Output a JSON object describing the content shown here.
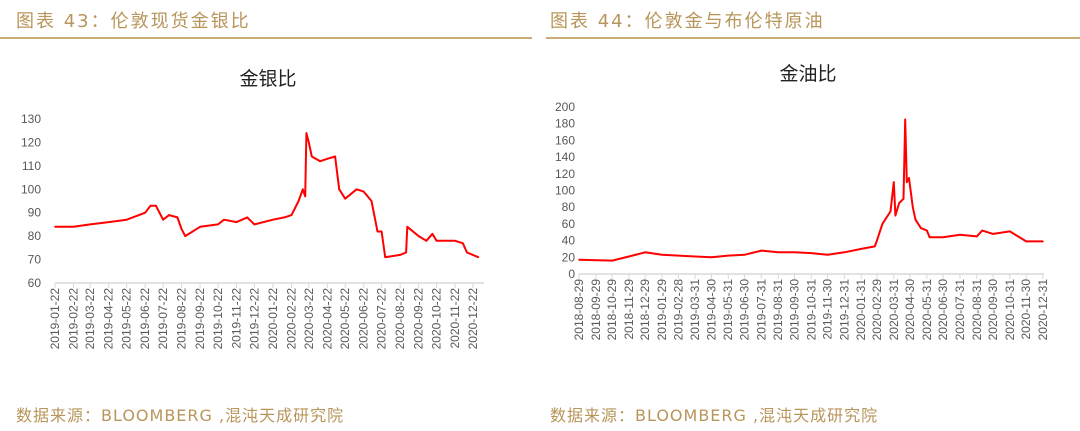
{
  "left_panel": {
    "header": "图表 43：伦敦现货金银比",
    "source": "数据来源：BLOOMBERG ,混沌天成研究院"
  },
  "right_panel": {
    "header": "图表 44：伦敦金与布伦特原油",
    "source": "数据来源：BLOOMBERG ,混沌天成研究院"
  },
  "chart_data": [
    {
      "type": "line",
      "title": "金银比",
      "line_color": "#ff0000",
      "ylim": [
        60,
        130
      ],
      "yticks": [
        60,
        70,
        80,
        90,
        100,
        110,
        120,
        130
      ],
      "xticks": [
        "2019-01-22",
        "2019-02-22",
        "2019-03-22",
        "2019-04-22",
        "2019-05-22",
        "2019-06-22",
        "2019-07-22",
        "2019-08-22",
        "2019-09-22",
        "2019-10-22",
        "2019-11-22",
        "2019-12-22",
        "2020-01-22",
        "2020-02-22",
        "2020-03-22",
        "2020-04-22",
        "2020-05-22",
        "2020-06-22",
        "2020-07-22",
        "2020-08-22",
        "2020-09-22",
        "2020-10-22",
        "2020-11-22",
        "2020-12-22"
      ],
      "grid": false,
      "series": [
        {
          "x": [
            "2019-01-22",
            "2019-02-22",
            "2019-03-22",
            "2019-04-22",
            "2019-05-22",
            "2019-06-22",
            "2019-07-01",
            "2019-07-10",
            "2019-07-22",
            "2019-08-01",
            "2019-08-15",
            "2019-08-22",
            "2019-08-28",
            "2019-09-22",
            "2019-10-22",
            "2019-11-01",
            "2019-11-22",
            "2019-12-10",
            "2019-12-22",
            "2020-01-22",
            "2020-02-10",
            "2020-02-22",
            "2020-03-05",
            "2020-03-12",
            "2020-03-16",
            "2020-03-18",
            "2020-03-22",
            "2020-03-27",
            "2020-04-10",
            "2020-04-22",
            "2020-05-05",
            "2020-05-12",
            "2020-05-22",
            "2020-06-10",
            "2020-06-22",
            "2020-07-05",
            "2020-07-15",
            "2020-07-22",
            "2020-07-28",
            "2020-08-22",
            "2020-09-01",
            "2020-09-03",
            "2020-09-22",
            "2020-10-05",
            "2020-10-15",
            "2020-10-22",
            "2020-11-22",
            "2020-12-05",
            "2020-12-12",
            "2020-12-31"
          ],
          "y": [
            84,
            84,
            85,
            86,
            87,
            90,
            93,
            93,
            87,
            89,
            88,
            83,
            80,
            84,
            85,
            87,
            86,
            88,
            85,
            87,
            88,
            89,
            95,
            100,
            97,
            124,
            120,
            114,
            112,
            113,
            114,
            100,
            96,
            100,
            99,
            95,
            82,
            82,
            71,
            72,
            73,
            84,
            80,
            78,
            81,
            78,
            78,
            77,
            73,
            71
          ]
        }
      ]
    },
    {
      "type": "line",
      "title": "金油比",
      "line_color": "#ff0000",
      "ylim": [
        0,
        200
      ],
      "yticks": [
        0,
        20,
        40,
        60,
        80,
        100,
        120,
        140,
        160,
        180,
        200
      ],
      "xticks": [
        "2018-08-29",
        "2018-09-29",
        "2018-10-29",
        "2018-11-29",
        "2018-12-29",
        "2019-01-29",
        "2019-02-28",
        "2019-03-31",
        "2019-04-30",
        "2019-05-31",
        "2019-06-30",
        "2019-07-31",
        "2019-08-31",
        "2019-09-30",
        "2019-10-31",
        "2019-11-30",
        "2019-12-31",
        "2020-01-31",
        "2020-02-29",
        "2020-03-31",
        "2020-04-30",
        "2020-05-31",
        "2020-06-30",
        "2020-07-31",
        "2020-08-31",
        "2020-09-30",
        "2020-10-31",
        "2020-11-30",
        "2020-12-31"
      ],
      "grid": false,
      "series": [
        {
          "x": [
            "2018-08-29",
            "2018-10-29",
            "2018-11-29",
            "2018-12-29",
            "2019-01-29",
            "2019-03-31",
            "2019-04-30",
            "2019-05-31",
            "2019-06-30",
            "2019-07-31",
            "2019-08-31",
            "2019-09-30",
            "2019-10-31",
            "2019-11-30",
            "2019-12-31",
            "2020-01-31",
            "2020-02-25",
            "2020-02-29",
            "2020-03-10",
            "2020-03-25",
            "2020-03-31",
            "2020-04-03",
            "2020-04-10",
            "2020-04-18",
            "2020-04-21",
            "2020-04-24",
            "2020-04-28",
            "2020-05-05",
            "2020-05-10",
            "2020-05-20",
            "2020-05-31",
            "2020-06-05",
            "2020-06-30",
            "2020-07-31",
            "2020-08-31",
            "2020-09-10",
            "2020-09-30",
            "2020-10-31",
            "2020-11-15",
            "2020-11-30",
            "2020-12-31"
          ],
          "y": [
            17,
            16,
            21,
            26,
            23,
            21,
            20,
            22,
            23,
            28,
            26,
            26,
            25,
            23,
            26,
            30,
            33,
            40,
            60,
            75,
            110,
            70,
            85,
            90,
            185,
            110,
            115,
            80,
            65,
            55,
            52,
            44,
            44,
            47,
            45,
            52,
            48,
            51,
            45,
            39,
            39
          ]
        }
      ]
    }
  ]
}
